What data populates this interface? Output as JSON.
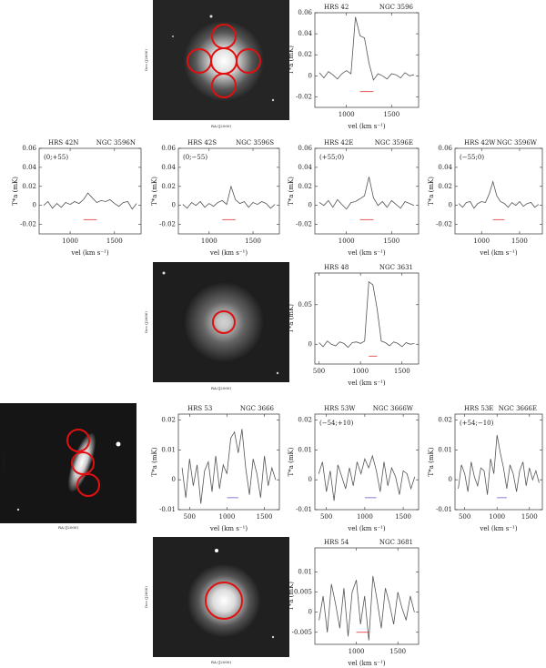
{
  "images": [
    {
      "xlabel": "RA (J2000)",
      "ylabel": "Dec (J2000)"
    },
    {
      "xlabel": "RA (J2000)",
      "ylabel": "Dec (J2000)"
    },
    {
      "xlabel": "RA (J2000)",
      "ylabel": "Dec (J2000)"
    },
    {
      "xlabel": "RA (J2000)",
      "ylabel": "Dec (J2000)"
    }
  ],
  "chart_data": [
    {
      "type": "line",
      "title": "HRS 42",
      "title_right": "NGC 3596",
      "xlabel": "vel (km s⁻¹)",
      "ylabel": "T*a (mK)",
      "x": [
        700,
        750,
        800,
        850,
        900,
        950,
        1000,
        1050,
        1100,
        1150,
        1200,
        1250,
        1300,
        1350,
        1400,
        1450,
        1500,
        1550,
        1600,
        1650,
        1700,
        1750
      ],
      "values": [
        0.003,
        -0.002,
        0.004,
        0.001,
        -0.003,
        0.002,
        0.005,
        0.002,
        0.056,
        0.038,
        0.036,
        0.012,
        -0.004,
        0.002,
        0.0,
        -0.003,
        0.002,
        0.001,
        -0.002,
        0.003,
        0.0,
        0.001
      ],
      "color": "#555555",
      "xlim": [
        650,
        1800
      ],
      "xticks": [
        1000,
        1500
      ],
      "ylim": [
        -0.03,
        0.06
      ],
      "yticks": [
        -0.02,
        0,
        0.02,
        0.04,
        0.06
      ],
      "range_marker": {
        "x": [
          1150,
          1300
        ],
        "y": -0.015,
        "color": "#e03030"
      }
    },
    {
      "type": "line",
      "title": "HRS 42N",
      "title_right": "NGC 3596N",
      "annotation": "(0;+55)",
      "xlabel": "vel (km s⁻¹)",
      "ylabel": "T*a (mK)",
      "x": [
        700,
        750,
        800,
        850,
        900,
        950,
        1000,
        1050,
        1100,
        1150,
        1200,
        1250,
        1300,
        1350,
        1400,
        1450,
        1500,
        1550,
        1600,
        1650,
        1700,
        1750
      ],
      "values": [
        0.0,
        0.004,
        -0.003,
        0.002,
        -0.002,
        0.003,
        0.001,
        0.004,
        0.002,
        0.006,
        0.013,
        0.008,
        0.003,
        0.005,
        0.004,
        0.006,
        0.002,
        -0.001,
        0.003,
        0.004,
        -0.004,
        0.002
      ],
      "color": "#555555",
      "xlim": [
        650,
        1800
      ],
      "xticks": [
        1000,
        1500
      ],
      "ylim": [
        -0.03,
        0.06
      ],
      "yticks": [
        -0.02,
        0,
        0.02,
        0.04,
        0.06
      ],
      "range_marker": {
        "x": [
          1150,
          1300
        ],
        "y": -0.015,
        "color": "#e03030"
      }
    },
    {
      "type": "line",
      "title": "HRS 42S",
      "title_right": "NGC 3596S",
      "annotation": "(0;−55)",
      "xlabel": "vel (km s⁻¹)",
      "ylabel": "T*a (mK)",
      "x": [
        700,
        750,
        800,
        850,
        900,
        950,
        1000,
        1050,
        1100,
        1150,
        1200,
        1250,
        1300,
        1350,
        1400,
        1450,
        1500,
        1550,
        1600,
        1650,
        1700,
        1750
      ],
      "values": [
        0.001,
        -0.003,
        0.003,
        0.0,
        0.004,
        -0.002,
        0.002,
        -0.001,
        0.003,
        0.005,
        0.001,
        0.02,
        0.006,
        0.002,
        0.004,
        -0.002,
        0.003,
        0.001,
        0.004,
        0.002,
        -0.003,
        0.001
      ],
      "color": "#555555",
      "xlim": [
        650,
        1800
      ],
      "xticks": [
        1000,
        1500
      ],
      "ylim": [
        -0.03,
        0.06
      ],
      "yticks": [
        -0.02,
        0,
        0.02,
        0.04,
        0.06
      ],
      "range_marker": {
        "x": [
          1150,
          1300
        ],
        "y": -0.015,
        "color": "#e03030"
      }
    },
    {
      "type": "line",
      "title": "HRS 42E",
      "title_right": "NGC 3596E",
      "annotation": "(+55;0)",
      "xlabel": "vel (km s⁻¹)",
      "ylabel": "T*a (mK)",
      "x": [
        700,
        750,
        800,
        850,
        900,
        950,
        1000,
        1050,
        1100,
        1150,
        1200,
        1250,
        1300,
        1350,
        1400,
        1450,
        1500,
        1550,
        1600,
        1650,
        1700,
        1750
      ],
      "values": [
        0.003,
        0.0,
        0.005,
        -0.002,
        0.006,
        0.001,
        -0.004,
        0.003,
        0.004,
        0.007,
        0.01,
        0.03,
        0.008,
        0.0,
        0.004,
        -0.002,
        0.005,
        0.001,
        -0.003,
        0.004,
        0.002,
        0.0
      ],
      "color": "#555555",
      "xlim": [
        650,
        1800
      ],
      "xticks": [
        1000,
        1500
      ],
      "ylim": [
        -0.03,
        0.06
      ],
      "yticks": [
        -0.02,
        0,
        0.02,
        0.04,
        0.06
      ],
      "range_marker": {
        "x": [
          1150,
          1300
        ],
        "y": -0.015,
        "color": "#e03030"
      }
    },
    {
      "type": "line",
      "title": "HRS 42W",
      "title_right": "NGC 3596W",
      "annotation": "(−55;0)",
      "xlabel": "vel (km s⁻¹)",
      "ylabel": "T*a (mK)",
      "x": [
        700,
        750,
        800,
        850,
        900,
        950,
        1000,
        1050,
        1100,
        1150,
        1200,
        1250,
        1300,
        1350,
        1400,
        1450,
        1500,
        1550,
        1600,
        1650,
        1700,
        1750
      ],
      "values": [
        0.002,
        -0.002,
        0.003,
        0.004,
        -0.003,
        0.002,
        0.004,
        0.003,
        0.012,
        0.025,
        0.01,
        0.004,
        0.002,
        -0.002,
        0.003,
        0.0,
        0.004,
        -0.001,
        0.002,
        0.003,
        -0.002,
        0.001
      ],
      "color": "#555555",
      "xlim": [
        650,
        1800
      ],
      "xticks": [
        1000,
        1500
      ],
      "ylim": [
        -0.03,
        0.06
      ],
      "yticks": [
        -0.02,
        0,
        0.02,
        0.04,
        0.06
      ],
      "range_marker": {
        "x": [
          1150,
          1300
        ],
        "y": -0.015,
        "color": "#e03030"
      }
    },
    {
      "type": "line",
      "title": "HRS 48",
      "title_right": "NGC 3631",
      "xlabel": "vel (km s⁻¹)",
      "ylabel": "T*a (mK)",
      "x": [
        500,
        550,
        600,
        650,
        700,
        750,
        800,
        850,
        900,
        950,
        1000,
        1050,
        1100,
        1150,
        1200,
        1250,
        1300,
        1350,
        1400,
        1450,
        1500,
        1550,
        1600,
        1650
      ],
      "values": [
        0.002,
        -0.003,
        0.004,
        0.0,
        -0.002,
        0.003,
        0.001,
        -0.004,
        0.002,
        0.003,
        0.001,
        0.004,
        0.079,
        0.075,
        0.045,
        0.004,
        0.002,
        -0.002,
        0.003,
        0.001,
        -0.003,
        0.002,
        0.0,
        0.001
      ],
      "color": "#555555",
      "xlim": [
        450,
        1700
      ],
      "xticks": [
        500,
        1000,
        1500
      ],
      "ylim": [
        -0.025,
        0.09
      ],
      "yticks": [
        0,
        0.05
      ],
      "range_marker": {
        "x": [
          1100,
          1200
        ],
        "y": -0.015,
        "color": "#e03030"
      }
    },
    {
      "type": "line",
      "title": "HRS 53",
      "title_right": "NGC 3666",
      "xlabel": "vel (km s⁻¹)",
      "ylabel": "T*a (mK)",
      "x": [
        400,
        450,
        500,
        550,
        600,
        650,
        700,
        750,
        800,
        850,
        900,
        950,
        1000,
        1050,
        1100,
        1150,
        1200,
        1250,
        1300,
        1350,
        1400,
        1450,
        1500,
        1550,
        1600,
        1650
      ],
      "values": [
        0.004,
        -0.006,
        0.007,
        -0.002,
        0.005,
        -0.008,
        0.003,
        0.006,
        -0.004,
        0.008,
        -0.003,
        0.005,
        0.002,
        0.014,
        0.016,
        0.009,
        0.017,
        0.004,
        -0.005,
        0.007,
        0.002,
        -0.006,
        0.008,
        -0.002,
        0.004,
        0.0
      ],
      "color": "#555555",
      "xlim": [
        350,
        1700
      ],
      "xticks": [
        500,
        1000,
        1500
      ],
      "ylim": [
        -0.01,
        0.022
      ],
      "yticks": [
        -0.01,
        0,
        0.01,
        0.02
      ],
      "range_marker": {
        "x": [
          1000,
          1150
        ],
        "y": -0.006,
        "color": "#6a5acd"
      }
    },
    {
      "type": "line",
      "title": "HRS 53W",
      "title_right": "NGC 3666W",
      "annotation": "(−54;+10)",
      "xlabel": "vel (km s⁻¹)",
      "ylabel": "T*a (mK)",
      "x": [
        400,
        450,
        500,
        550,
        600,
        650,
        700,
        750,
        800,
        850,
        900,
        950,
        1000,
        1050,
        1100,
        1150,
        1200,
        1250,
        1300,
        1350,
        1400,
        1450,
        1500,
        1550,
        1600,
        1650
      ],
      "values": [
        0.002,
        0.006,
        -0.004,
        0.003,
        -0.007,
        0.005,
        0.001,
        -0.003,
        0.004,
        -0.002,
        0.006,
        0.002,
        0.007,
        0.004,
        0.008,
        0.003,
        -0.004,
        0.006,
        -0.002,
        0.004,
        0.001,
        -0.005,
        0.003,
        0.002,
        -0.003,
        0.001
      ],
      "color": "#555555",
      "xlim": [
        350,
        1700
      ],
      "xticks": [
        500,
        1000,
        1500
      ],
      "ylim": [
        -0.01,
        0.022
      ],
      "yticks": [
        -0.01,
        0,
        0.01,
        0.02
      ],
      "range_marker": {
        "x": [
          1000,
          1150
        ],
        "y": -0.006,
        "color": "#6a5acd"
      }
    },
    {
      "type": "line",
      "title": "HRS 53E",
      "title_right": "NGC 3666E",
      "annotation": "(+54;−10)",
      "xlabel": "vel (km s⁻¹)",
      "ylabel": "T*a (mK)",
      "x": [
        400,
        450,
        500,
        550,
        600,
        650,
        700,
        750,
        800,
        850,
        900,
        950,
        1000,
        1050,
        1100,
        1150,
        1200,
        1250,
        1300,
        1350,
        1400,
        1450,
        1500,
        1550,
        1600,
        1650
      ],
      "values": [
        -0.003,
        0.005,
        0.002,
        -0.004,
        0.006,
        0.001,
        -0.002,
        0.004,
        0.003,
        -0.005,
        0.007,
        0.002,
        0.015,
        0.009,
        0.004,
        -0.003,
        0.005,
        0.002,
        -0.004,
        0.003,
        0.006,
        -0.002,
        0.004,
        0.0,
        0.003,
        -0.001
      ],
      "color": "#555555",
      "xlim": [
        350,
        1700
      ],
      "xticks": [
        500,
        1000,
        1500
      ],
      "ylim": [
        -0.01,
        0.022
      ],
      "yticks": [
        -0.01,
        0,
        0.01,
        0.02
      ],
      "range_marker": {
        "x": [
          1000,
          1150
        ],
        "y": -0.006,
        "color": "#6a5acd"
      }
    },
    {
      "type": "line",
      "title": "HRS 54",
      "title_right": "NGC 3681",
      "xlabel": "vel (km s⁻¹)",
      "ylabel": "T*a (mK)",
      "x": [
        550,
        600,
        650,
        700,
        750,
        800,
        850,
        900,
        950,
        1000,
        1050,
        1100,
        1150,
        1200,
        1250,
        1300,
        1350,
        1400,
        1450,
        1500,
        1550,
        1600,
        1650,
        1700
      ],
      "values": [
        -0.002,
        0.004,
        -0.005,
        0.007,
        0.002,
        -0.004,
        0.006,
        -0.006,
        0.005,
        0.008,
        -0.003,
        0.004,
        -0.007,
        0.009,
        0.003,
        -0.004,
        0.006,
        0.002,
        -0.003,
        0.005,
        0.001,
        -0.002,
        0.004,
        0.0
      ],
      "color": "#555555",
      "xlim": [
        500,
        1750
      ],
      "xticks": [
        1000,
        1500
      ],
      "ylim": [
        -0.008,
        0.016
      ],
      "yticks": [
        -0.005,
        0,
        0.005,
        0.01
      ],
      "range_marker": {
        "x": [
          1000,
          1150
        ],
        "y": -0.005,
        "color": "#e03030"
      }
    }
  ]
}
